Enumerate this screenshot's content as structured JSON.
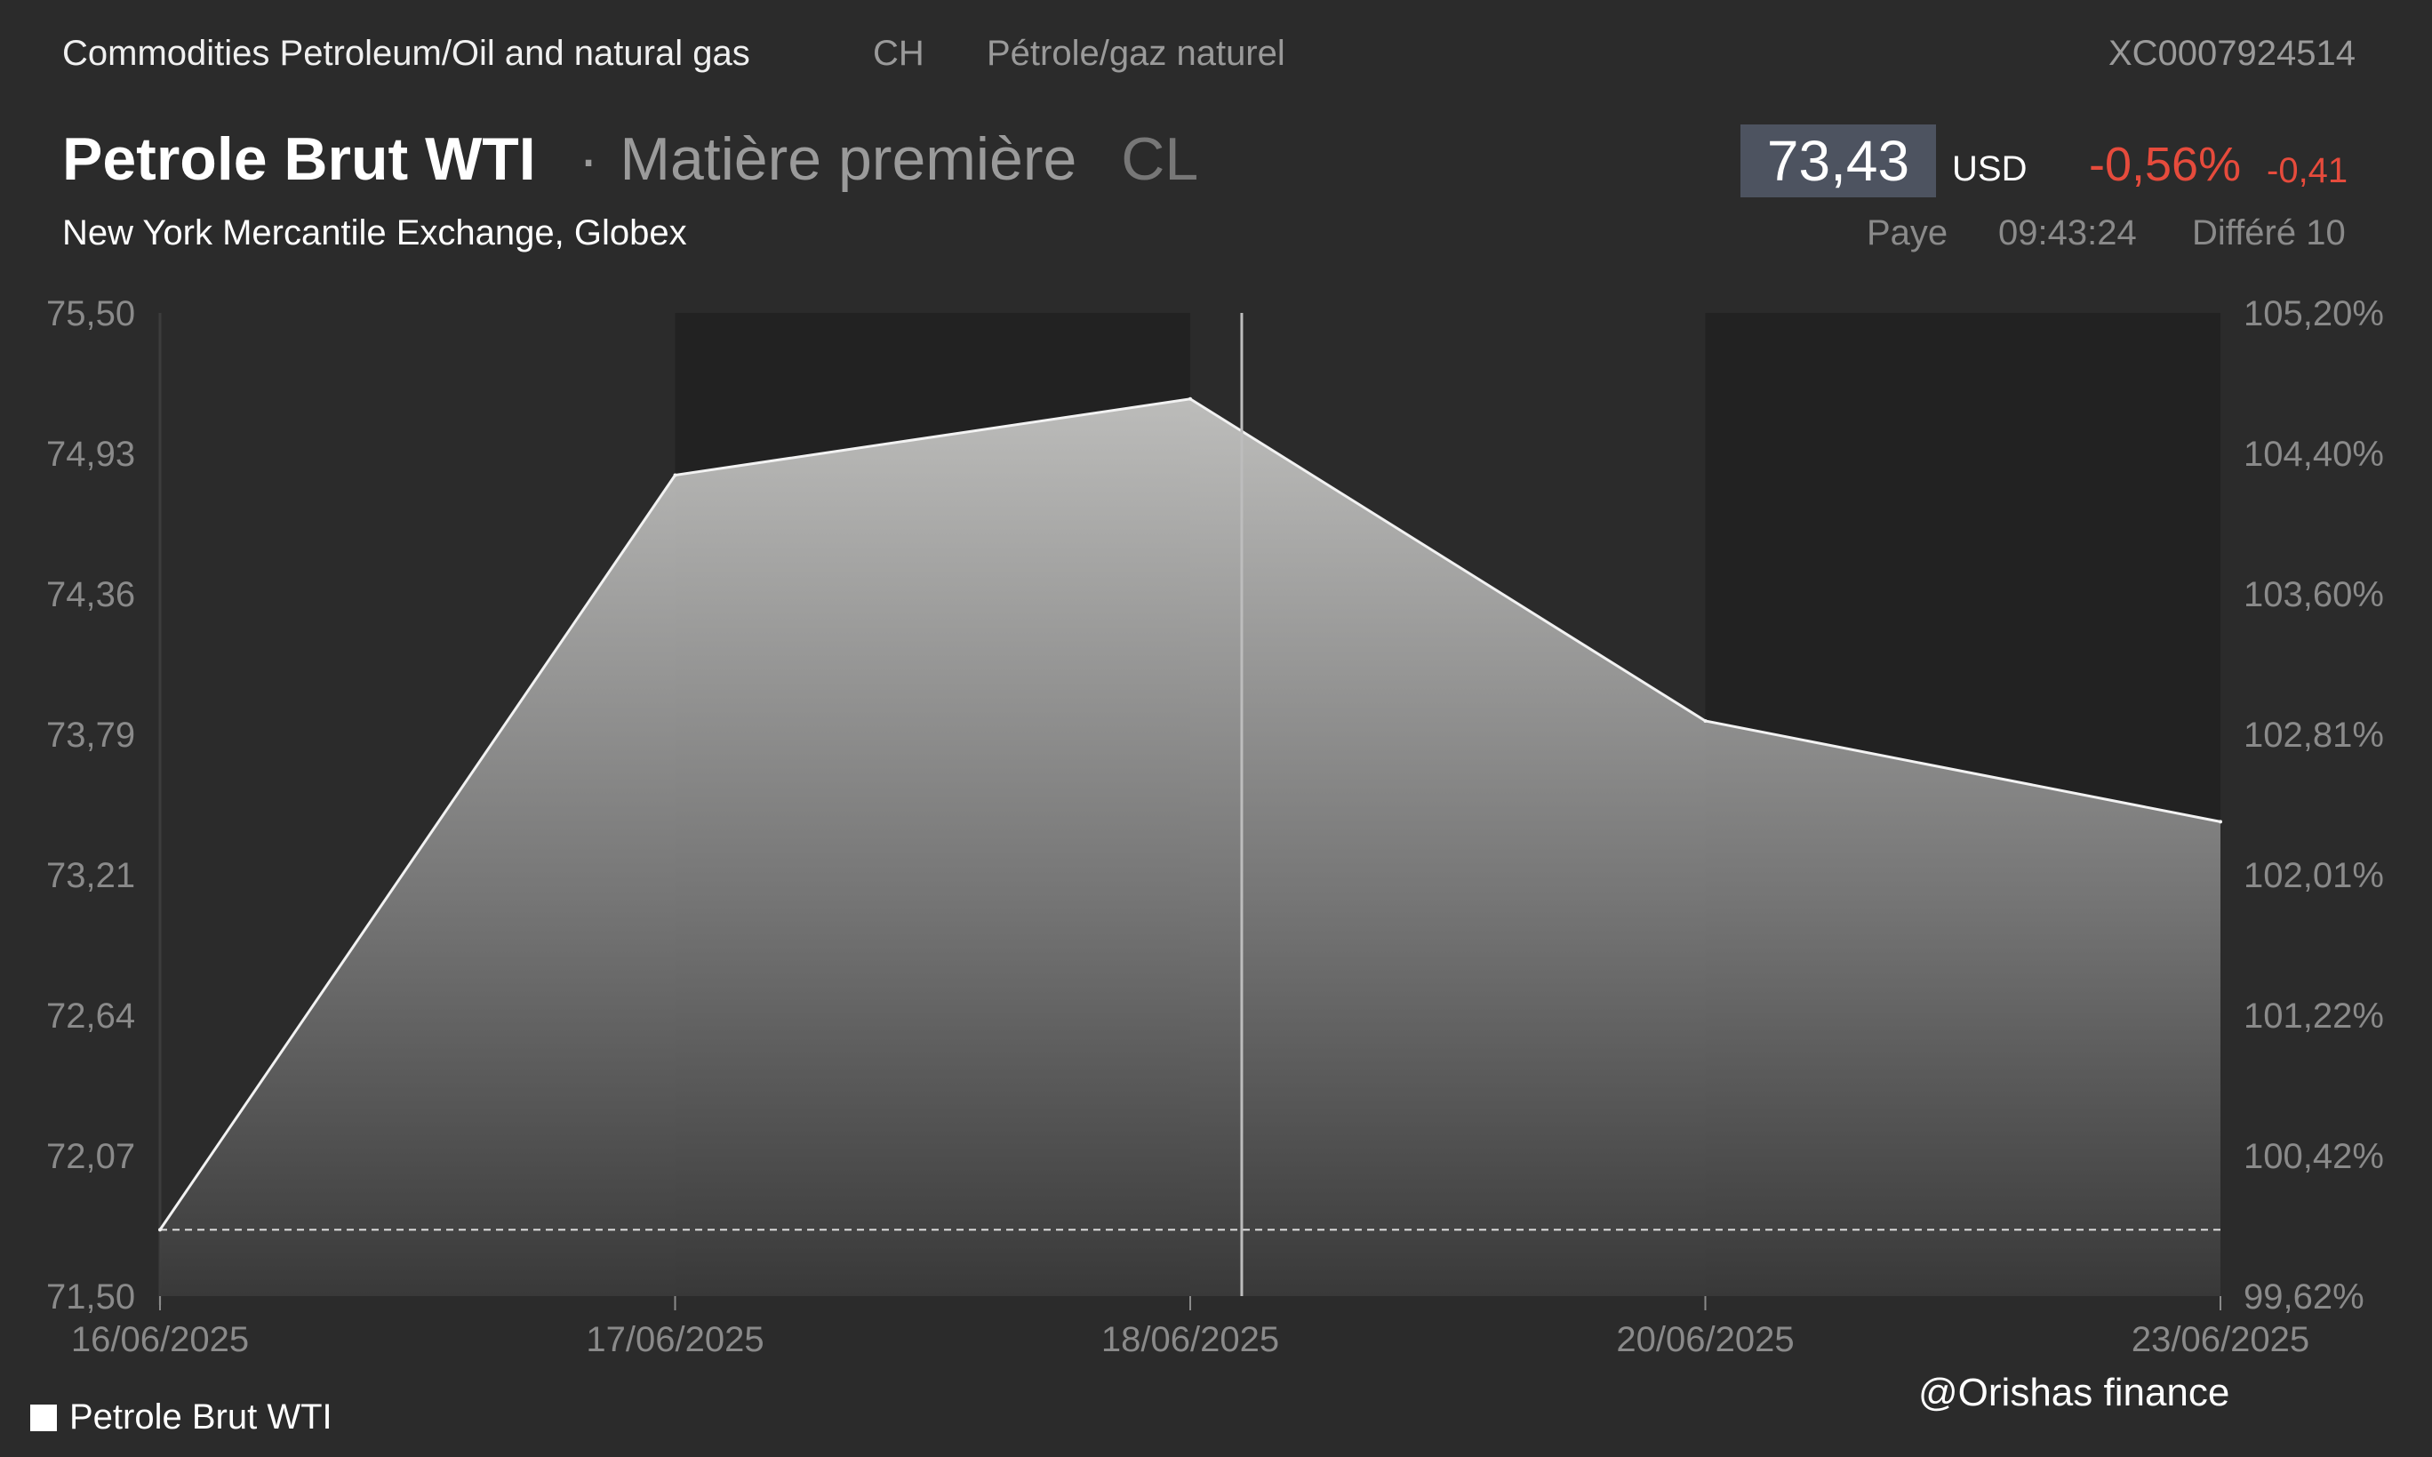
{
  "header": {
    "category": "Commodities Petroleum/Oil and natural gas",
    "country": "CH",
    "category_fr": "Pétrole/gaz naturel",
    "isin": "XC0007924514",
    "name": "Petrole Brut WTI",
    "separator": "·",
    "type": "Matière première",
    "symbol": "CL",
    "exchange": "New York Mercantile Exchange, Globex"
  },
  "quote": {
    "price": "73,43",
    "currency": "USD",
    "change_pct": "-0,56%",
    "change_abs": "-0,41",
    "venue": "Paye",
    "time": "09:43:24",
    "delay": "Différé 10"
  },
  "colors": {
    "background": "#2b2b2b",
    "shaded_band": "#222222",
    "line": "#f2f2f2",
    "negative": "#e64b3c",
    "price_box": "#4d5360"
  },
  "legend_label": "Petrole Brut WTI",
  "watermark": "@Orishas finance",
  "chart_data": {
    "type": "area",
    "x": [
      "16/06/2025",
      "17/06/2025",
      "18/06/2025",
      "20/06/2025",
      "23/06/2025"
    ],
    "series": [
      {
        "name": "Petrole Brut WTI",
        "values": [
          71.77,
          74.84,
          75.15,
          73.84,
          73.43
        ]
      }
    ],
    "baseline": 71.77,
    "ylim": [
      71.5,
      75.5
    ],
    "yticks": [
      "75,50",
      "74,93",
      "74,36",
      "73,79",
      "73,21",
      "72,64",
      "72,07",
      "71,50"
    ],
    "yticks_right": [
      "105,20%",
      "104,40%",
      "103,60%",
      "102,81%",
      "102,01%",
      "101,22%",
      "100,42%",
      "99,62%"
    ],
    "xticks": [
      "16/06/2025",
      "17/06/2025",
      "18/06/2025",
      "20/06/2025",
      "23/06/2025"
    ],
    "cursor_x": 18.2,
    "grid": false,
    "legend": "bottom-left"
  }
}
